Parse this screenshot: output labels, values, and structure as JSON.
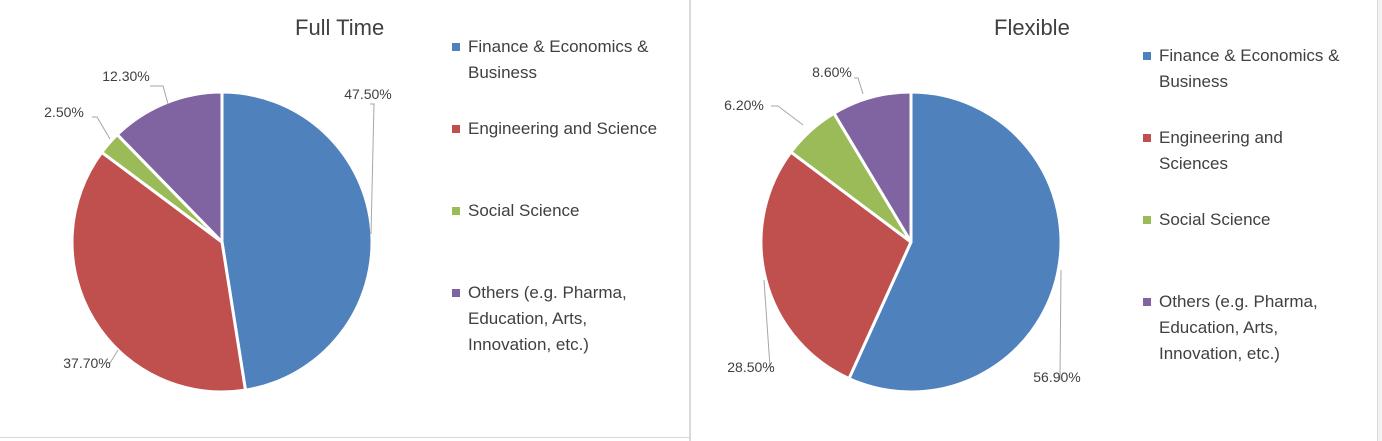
{
  "chart_data": [
    {
      "type": "pie",
      "title": "Full Time",
      "categories": [
        "Finance & Economics & Business",
        "Engineering and Science",
        "Social Science",
        "Others (e.g. Pharma, Education, Arts, Innovation, etc.)"
      ],
      "legend_lines": [
        [
          "Finance & Economics &",
          "Business"
        ],
        [
          "Engineering and Science"
        ],
        [
          "Social Science"
        ],
        [
          "Others (e.g. Pharma,",
          "Education, Arts,",
          "Innovation, etc.)"
        ]
      ],
      "values": [
        47.5,
        37.7,
        2.5,
        12.3
      ],
      "labels": [
        "47.50%",
        "37.70%",
        "2.50%",
        "12.30%"
      ],
      "colors": [
        "#4f81bd",
        "#c0504d",
        "#9bbb59",
        "#8064a2"
      ],
      "legend_position": "right"
    },
    {
      "type": "pie",
      "title": "Flexible",
      "categories": [
        "Finance & Economics & Business",
        "Engineering and Sciences",
        "Social Science",
        "Others (e.g. Pharma, Education, Arts, Innovation, etc.)"
      ],
      "legend_lines": [
        [
          "Finance & Economics &",
          "Business"
        ],
        [
          "Engineering and",
          "Sciences"
        ],
        [
          "Social Science"
        ],
        [
          "Others (e.g. Pharma,",
          "Education, Arts,",
          "Innovation, etc.)"
        ]
      ],
      "values": [
        56.9,
        28.5,
        6.2,
        8.6
      ],
      "labels": [
        "56.90%",
        "28.50%",
        "6.20%",
        "8.60%"
      ],
      "colors": [
        "#4f81bd",
        "#c0504d",
        "#9bbb59",
        "#8064a2"
      ],
      "legend_position": "right"
    }
  ]
}
